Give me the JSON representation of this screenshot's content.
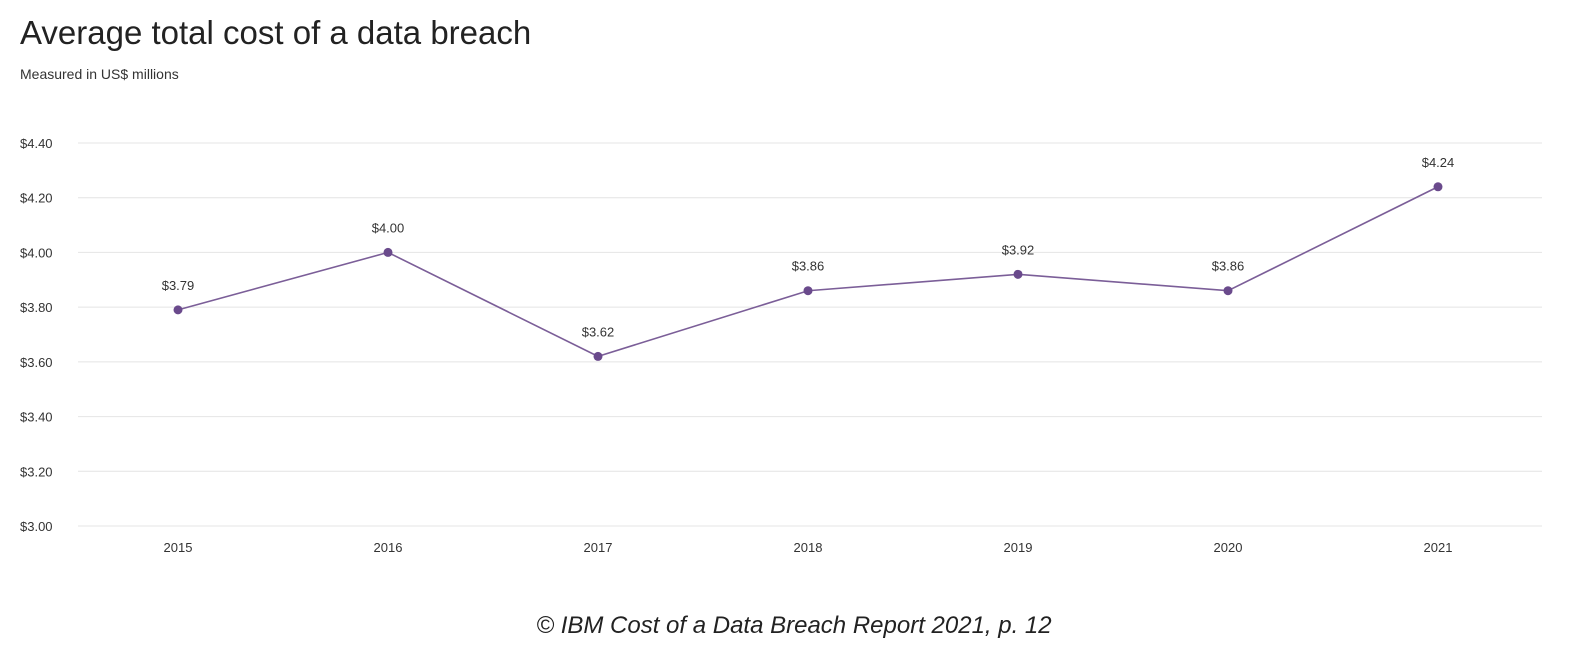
{
  "chart_data": {
    "type": "line",
    "title": "Average total cost of a data breach",
    "subtitle": "Measured in US$ millions",
    "categories": [
      "2015",
      "2016",
      "2017",
      "2018",
      "2019",
      "2020",
      "2021"
    ],
    "values": [
      3.79,
      4.0,
      3.62,
      3.86,
      3.92,
      3.86,
      4.24
    ],
    "data_labels": [
      "$3.79",
      "$4.00",
      "$3.62",
      "$3.86",
      "$3.92",
      "$3.86",
      "$4.24"
    ],
    "ylim": [
      3.0,
      4.4
    ],
    "yticks": [
      3.0,
      3.2,
      3.4,
      3.6,
      3.8,
      4.0,
      4.2,
      4.4
    ],
    "ytick_labels": [
      "$3.00",
      "$3.20",
      "$3.40",
      "$3.60",
      "$3.80",
      "$4.00",
      "$4.20",
      "$4.40"
    ],
    "xlabel": "",
    "ylabel": "",
    "grid": true,
    "line_color": "#7b5e98",
    "marker_color": "#6a4a8c"
  },
  "caption": "© IBM Cost of a Data Breach Report 2021, p. 12"
}
